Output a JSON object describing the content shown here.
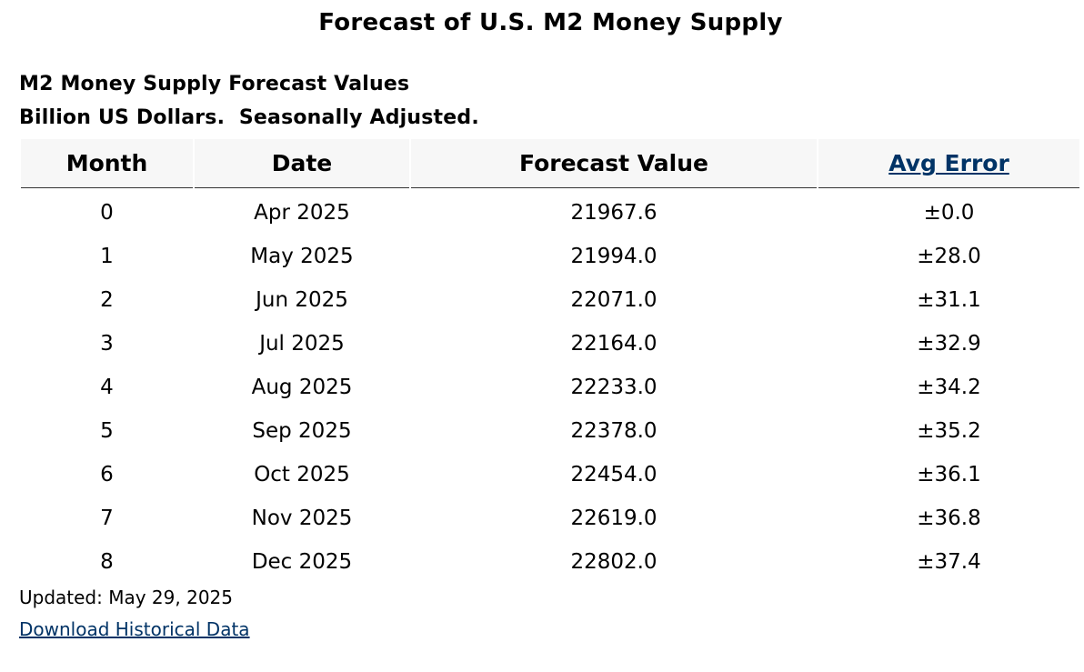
{
  "page": {
    "title": "Forecast of U.S. M2 Money Supply"
  },
  "table_caption": {
    "heading": "M2 Money Supply Forecast Values",
    "units": "Billion US Dollars.  Seasonally Adjusted."
  },
  "table": {
    "columns": [
      "Month",
      "Date",
      "Forecast Value",
      "Avg Error"
    ],
    "rows": [
      [
        "0",
        "Apr 2025",
        "21967.6",
        "±0.0"
      ],
      [
        "1",
        "May 2025",
        "21994.0",
        "±28.0"
      ],
      [
        "2",
        "Jun 2025",
        "22071.0",
        "±31.1"
      ],
      [
        "3",
        "Jul 2025",
        "22164.0",
        "±32.9"
      ],
      [
        "4",
        "Aug 2025",
        "22233.0",
        "±34.2"
      ],
      [
        "5",
        "Sep 2025",
        "22378.0",
        "±35.2"
      ],
      [
        "6",
        "Oct 2025",
        "22454.0",
        "±36.1"
      ],
      [
        "7",
        "Nov 2025",
        "22619.0",
        "±36.8"
      ],
      [
        "8",
        "Dec 2025",
        "22802.0",
        "±37.4"
      ]
    ]
  },
  "footer": {
    "updated": "Updated: May 29, 2025",
    "download_link": "Download Historical Data"
  },
  "colors": {
    "link": "#003366",
    "header_background": "#f7f7f7"
  }
}
